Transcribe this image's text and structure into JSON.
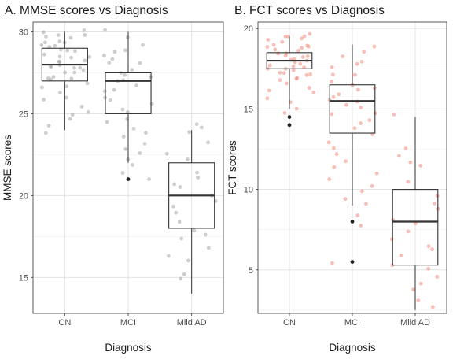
{
  "chart_data": [
    {
      "type": "boxplot",
      "title": "A. MMSE scores vs Diagnosis",
      "xlabel": "Diagnosis",
      "ylabel": "MMSE scores",
      "categories": [
        "CN",
        "MCI",
        "Mild AD"
      ],
      "ylim": [
        12.8,
        30.6
      ],
      "yticks": [
        15,
        20,
        25,
        30
      ],
      "grid": true,
      "point_color": "#9e9e9e",
      "boxes": [
        {
          "category": "CN",
          "whisker_low": 24,
          "q1": 27,
          "median": 28,
          "q3": 29,
          "whisker_high": 30,
          "outliers": []
        },
        {
          "category": "MCI",
          "whisker_low": 22,
          "q1": 25,
          "median": 27,
          "q3": 27.5,
          "whisker_high": 30,
          "outliers": [
            21
          ]
        },
        {
          "category": "Mild AD",
          "whisker_low": 14,
          "q1": 18,
          "median": 20,
          "q3": 22,
          "whisker_high": 24,
          "outliers": []
        }
      ],
      "points": [
        {
          "category": "CN",
          "values": [
            30,
            30,
            29.9,
            29.8,
            29.7,
            29.6,
            29.5,
            29.4,
            29.3,
            29.2,
            29.1,
            29,
            29,
            28.9,
            28.8,
            28.7,
            28.6,
            28.5,
            28.4,
            28.3,
            28.2,
            28.1,
            28,
            28,
            27.9,
            27.8,
            27.7,
            27.6,
            27.5,
            27.4,
            27.3,
            27.2,
            27.1,
            27,
            26.9,
            26.7,
            26.5,
            26.2,
            26,
            25.8,
            25.5,
            25.2,
            24.9,
            24.6,
            24.2,
            23.7
          ]
        },
        {
          "category": "MCI",
          "values": [
            30,
            29.6,
            29.3,
            29,
            28.8,
            28.6,
            28.4,
            28.2,
            28,
            27.8,
            27.6,
            27.4,
            27.2,
            27,
            26.9,
            26.7,
            26.5,
            26.3,
            26.1,
            25.9,
            25.6,
            25.3,
            25,
            24.7,
            24.4,
            24.1,
            23.8,
            23.5,
            23.2,
            22.8,
            22.5,
            22.1,
            21.8,
            21.5,
            21
          ]
        },
        {
          "category": "Mild AD",
          "values": [
            24.4,
            24.1,
            23.9,
            23.2,
            22.6,
            22.1,
            21.5,
            21.2,
            20.7,
            20.4,
            20,
            19.7,
            19.3,
            18.9,
            18.3,
            17.9,
            17.7,
            17.4,
            16.8,
            16.4,
            16.1,
            15.2,
            14.8
          ]
        }
      ]
    },
    {
      "type": "boxplot",
      "title": "B. FCT scores vs Diagnosis",
      "xlabel": "Diagnosis",
      "ylabel": "FCT scores",
      "categories": [
        "CN",
        "MCI",
        "Mild AD"
      ],
      "ylim": [
        2.3,
        20.4
      ],
      "yticks": [
        5,
        10,
        15,
        20
      ],
      "grid": true,
      "point_color": "#f08070",
      "boxes": [
        {
          "category": "CN",
          "whisker_low": 15,
          "q1": 17.5,
          "median": 18,
          "q3": 18.5,
          "whisker_high": 19.5,
          "outliers": [
            14.5,
            14
          ]
        },
        {
          "category": "MCI",
          "whisker_low": 9,
          "q1": 13.5,
          "median": 15.5,
          "q3": 16.5,
          "whisker_high": 19,
          "outliers": [
            8,
            5.5
          ]
        },
        {
          "category": "Mild AD",
          "whisker_low": 2.5,
          "q1": 5.3,
          "median": 8,
          "q3": 10,
          "whisker_high": 14.5,
          "outliers": []
        }
      ],
      "points": [
        {
          "category": "CN",
          "values": [
            19.7,
            19.6,
            19.5,
            19.5,
            19.4,
            19.3,
            19.2,
            19.1,
            19,
            19,
            18.9,
            18.8,
            18.7,
            18.6,
            18.5,
            18.5,
            18.4,
            18.3,
            18.2,
            18.1,
            18,
            18,
            18,
            17.9,
            17.8,
            17.7,
            17.6,
            17.5,
            17.5,
            17.4,
            17.3,
            17.2,
            17.1,
            17,
            17,
            16.9,
            16.8,
            16.6,
            16.4,
            16.2,
            16,
            15.7,
            15.4,
            15.1,
            14.8
          ]
        },
        {
          "category": "MCI",
          "values": [
            18.8,
            18.6,
            18.3,
            18,
            17.8,
            17.5,
            17.2,
            17,
            16.8,
            16.6,
            16.4,
            16.2,
            16,
            15.8,
            15.6,
            15.4,
            15.2,
            15,
            14.8,
            14.6,
            14.3,
            14,
            13.7,
            13.4,
            13,
            12.6,
            12.2,
            11.8,
            11.4,
            11,
            10.6,
            10.2,
            9.8,
            9.4,
            9,
            8.5,
            7.8,
            5.3
          ]
        },
        {
          "category": "Mild AD",
          "values": [
            14.7,
            12.6,
            12.2,
            11.8,
            11.4,
            10.5,
            9.6,
            9.2,
            8.8,
            8.2,
            7.8,
            7.4,
            7,
            6.6,
            6.2,
            5.8,
            5.4,
            5,
            4.5,
            4.2,
            3.7,
            3.2,
            2.8
          ]
        }
      ]
    }
  ]
}
